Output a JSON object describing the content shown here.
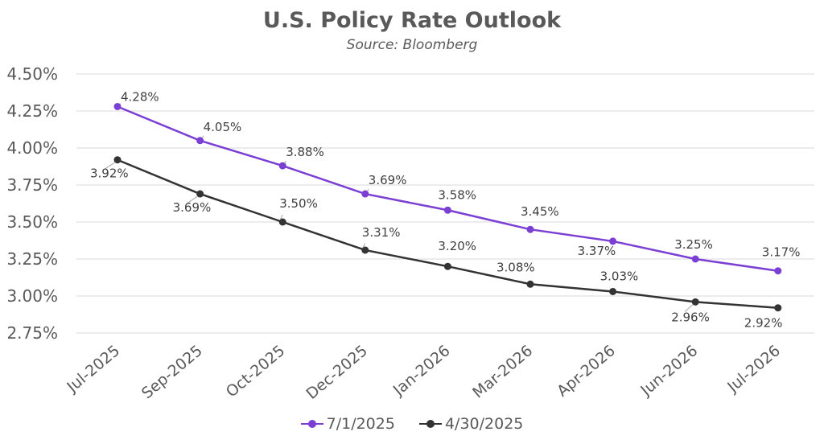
{
  "chart_data": {
    "type": "line",
    "title": "U.S. Policy Rate Outlook",
    "subtitle": "Source: Bloomberg",
    "categories": [
      "Jul-2025",
      "Sep-2025",
      "Oct-2025",
      "Dec-2025",
      "Jan-2026",
      "Mar-2026",
      "Apr-2026",
      "Jun-2026",
      "Jul-2026"
    ],
    "ylim": [
      2.75,
      4.5
    ],
    "yticks": [
      2.75,
      3.0,
      3.25,
      3.5,
      3.75,
      4.0,
      4.25,
      4.5
    ],
    "ytick_labels": [
      "2.75%",
      "3.00%",
      "3.25%",
      "3.50%",
      "3.75%",
      "4.00%",
      "4.25%",
      "4.50%"
    ],
    "grid": true,
    "legend_position": "bottom",
    "series": [
      {
        "name": "7/1/2025",
        "color": "#7B3FD4",
        "values": [
          4.28,
          4.05,
          3.88,
          3.69,
          3.58,
          3.45,
          3.37,
          3.25,
          3.17
        ],
        "labels": [
          "4.28%",
          "4.05%",
          "3.88%",
          "3.69%",
          "3.58%",
          "3.45%",
          "3.37%",
          "3.25%",
          "3.17%"
        ]
      },
      {
        "name": "4/30/2025",
        "color": "#333333",
        "values": [
          3.92,
          3.69,
          3.5,
          3.31,
          3.2,
          3.08,
          3.03,
          2.96,
          2.92
        ],
        "labels": [
          "3.92%",
          "3.69%",
          "3.50%",
          "3.31%",
          "3.20%",
          "3.08%",
          "3.03%",
          "2.96%",
          "2.92%"
        ]
      }
    ]
  }
}
